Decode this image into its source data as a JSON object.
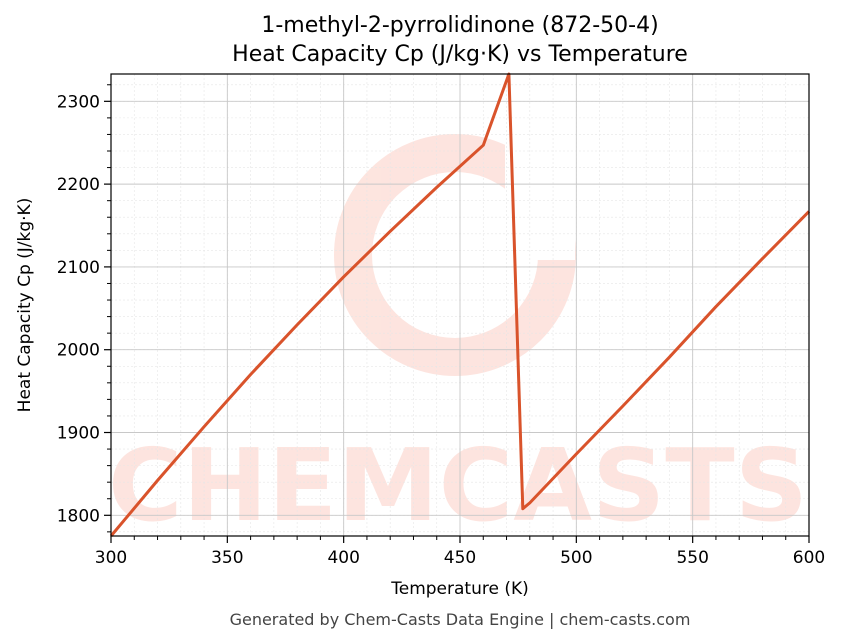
{
  "chart_data": {
    "type": "line",
    "title_line1": "1-methyl-2-pyrrolidinone (872-50-4)",
    "title_line2": "Heat Capacity Cp (J/kg·K) vs Temperature",
    "xlabel": "Temperature (K)",
    "ylabel": "Heat Capacity Cp (J/kg·K)",
    "xlim": [
      300,
      600
    ],
    "ylim": [
      1775,
      2333
    ],
    "xticks": [
      300,
      350,
      400,
      450,
      500,
      550,
      600
    ],
    "yticks": [
      1800,
      1900,
      2000,
      2100,
      2200,
      2300
    ],
    "grid": true,
    "line_color": "#d9532b",
    "series": [
      {
        "x": [
          300,
          320,
          340,
          360,
          380,
          400,
          420,
          440,
          460,
          471,
          477,
          480,
          500,
          520,
          540,
          560,
          580,
          600
        ],
        "y": [
          1775,
          1842,
          1907,
          1970,
          2030,
          2088,
          2143,
          2196,
          2247,
          2333,
          1808,
          1815,
          1874,
          1932,
          1991,
          2052,
          2110,
          2167
        ]
      }
    ]
  },
  "watermark": "CHEMCASTS",
  "footer": "Generated by Chem-Casts Data Engine | chem-casts.com"
}
